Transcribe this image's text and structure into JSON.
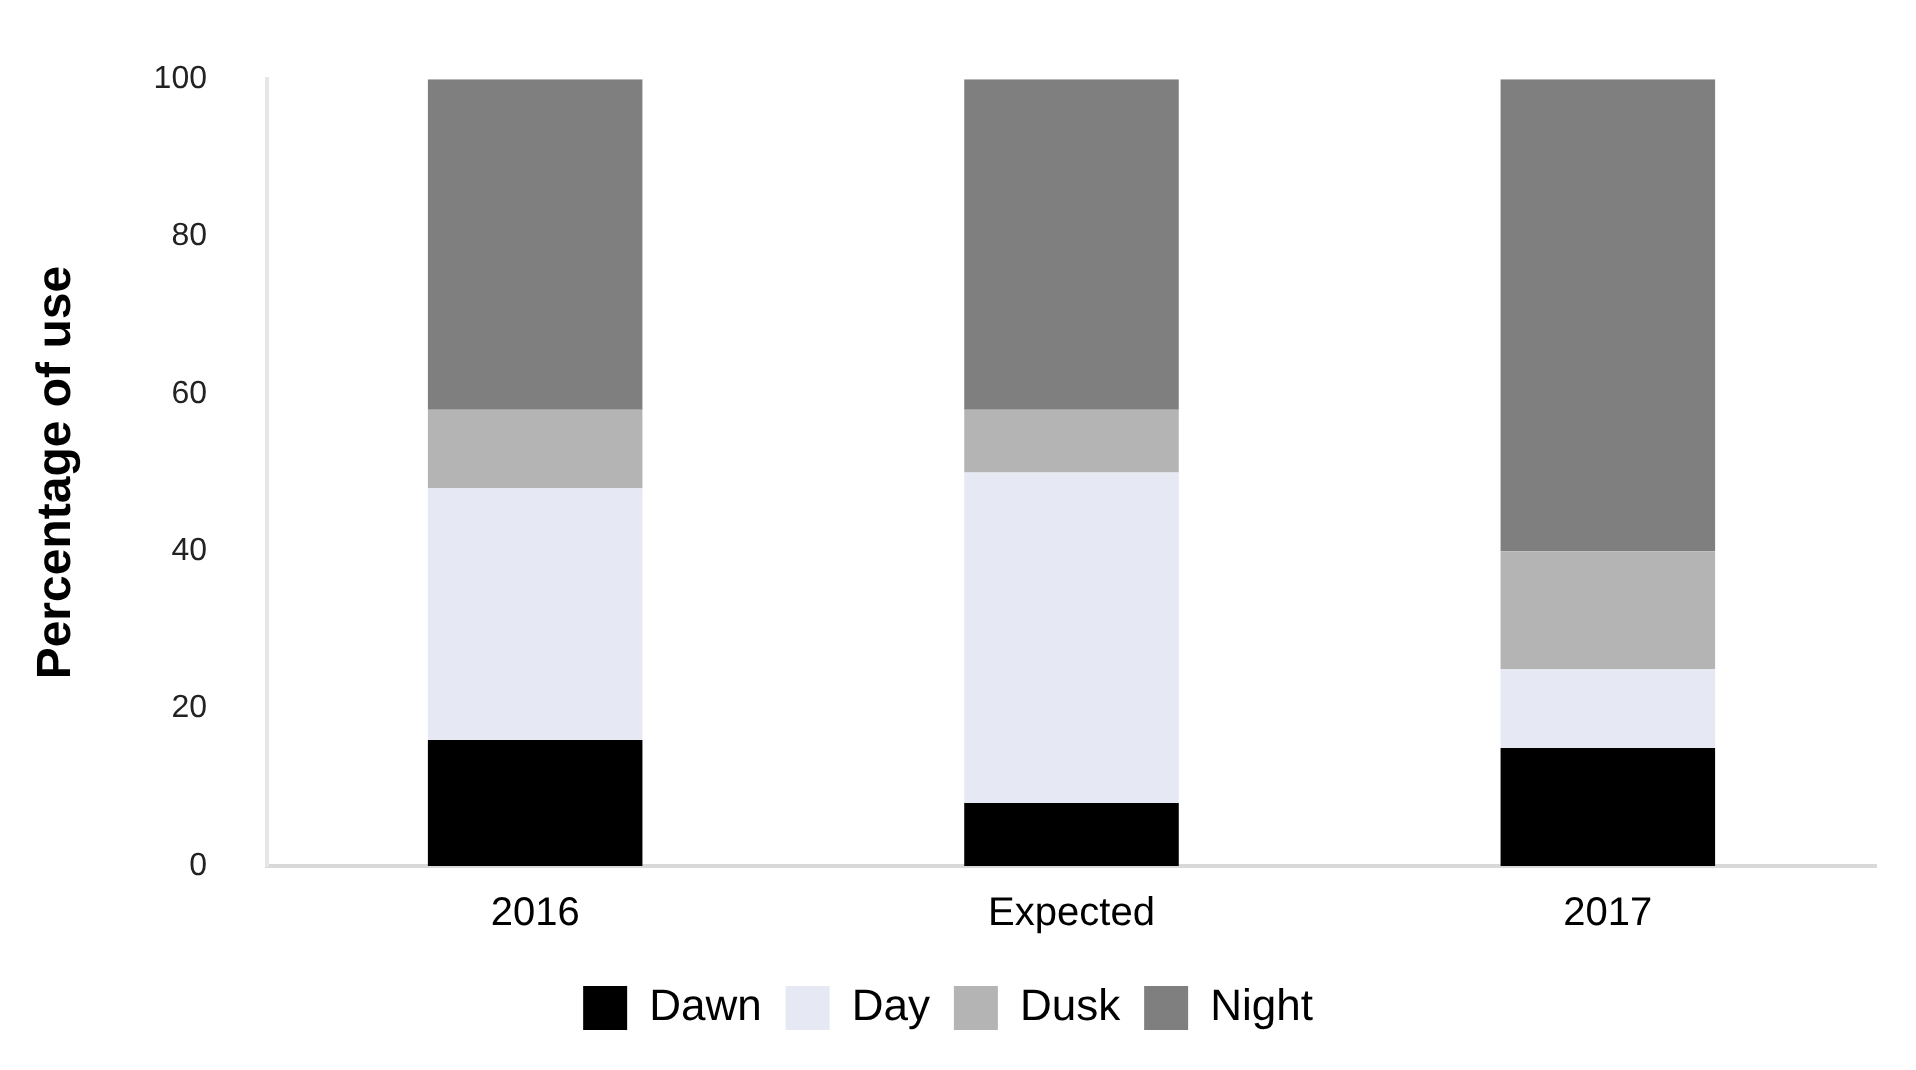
{
  "chart_data": {
    "type": "bar",
    "stacked": true,
    "ylabel": "Percentage of use",
    "categories": [
      "2016",
      "Expected",
      "2017"
    ],
    "series": [
      {
        "name": "Dawn",
        "color": "#000000",
        "values": [
          16,
          8,
          15
        ]
      },
      {
        "name": "Day",
        "color": "#e6e9f4",
        "values": [
          32,
          42,
          10
        ]
      },
      {
        "name": "Dusk",
        "color": "#b4b4b4",
        "values": [
          10,
          8,
          15
        ]
      },
      {
        "name": "Night",
        "color": "#7f7f7f",
        "values": [
          42,
          42,
          60
        ]
      }
    ],
    "ylim": [
      0,
      100
    ],
    "yticks": [
      0,
      20,
      40,
      60,
      80,
      100
    ],
    "grid": false,
    "legend": "bottom"
  }
}
